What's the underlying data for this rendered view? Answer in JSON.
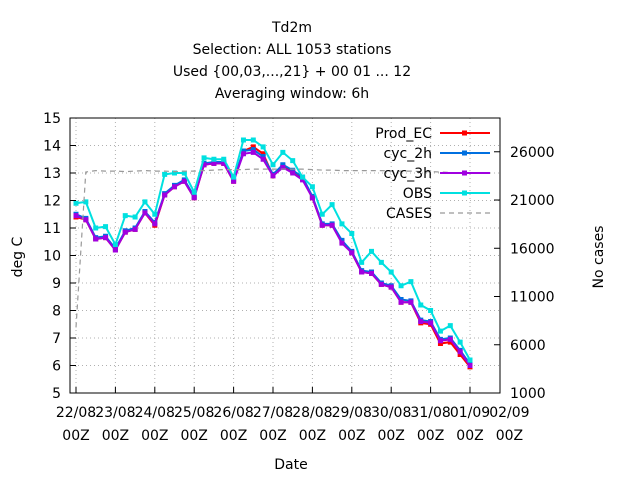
{
  "chart_data": {
    "type": "line",
    "title_lines": [
      "Td2m",
      "Selection: ALL    1053 stations",
      "Used {00,03,...,21} + 00 01 ... 12",
      "Averaging window:  6h"
    ],
    "xlabel": "Date",
    "ylabel": "deg C",
    "y2label": "No cases",
    "ylim": [
      5,
      15
    ],
    "yticks": [
      "5",
      "6",
      "7",
      "8",
      "9",
      "10",
      "11",
      "12",
      "13",
      "14",
      "15"
    ],
    "y2lim": [
      1000,
      29500
    ],
    "y2ticks": [
      "1000",
      "6000",
      "11000",
      "16000",
      "21000",
      "26000"
    ],
    "xlim": [
      0,
      240
    ],
    "xticks": [
      {
        "x": 0,
        "date": "22/08",
        "hour": "00Z"
      },
      {
        "x": 24,
        "date": "23/08",
        "hour": "00Z"
      },
      {
        "x": 48,
        "date": "24/08",
        "hour": "00Z"
      },
      {
        "x": 72,
        "date": "25/08",
        "hour": "00Z"
      },
      {
        "x": 96,
        "date": "26/08",
        "hour": "00Z"
      },
      {
        "x": 120,
        "date": "27/08",
        "hour": "00Z"
      },
      {
        "x": 144,
        "date": "28/08",
        "hour": "00Z"
      },
      {
        "x": 168,
        "date": "29/08",
        "hour": "00Z"
      },
      {
        "x": 192,
        "date": "30/08",
        "hour": "00Z"
      },
      {
        "x": 216,
        "date": "31/08",
        "hour": "00Z"
      },
      {
        "x": 240,
        "date": "01/09",
        "hour": "00Z"
      },
      {
        "x": 264,
        "date": "02/09",
        "hour": "00Z"
      }
    ],
    "x": [
      0,
      6,
      12,
      18,
      24,
      30,
      36,
      42,
      48,
      54,
      60,
      66,
      72,
      78,
      84,
      90,
      96,
      102,
      108,
      114,
      120,
      126,
      132,
      138,
      144,
      150,
      156,
      162,
      168,
      174,
      180,
      186,
      192,
      198,
      204,
      210,
      216,
      222,
      228,
      234,
      240
    ],
    "legend_position": "top-right",
    "grid": true,
    "series": [
      {
        "name": "Prod_EC",
        "color": "#ff0000",
        "marker": "square",
        "axis": "y",
        "values": [
          11.4,
          11.3,
          10.6,
          10.65,
          10.2,
          10.85,
          10.95,
          11.55,
          11.1,
          12.2,
          12.5,
          12.7,
          12.1,
          13.3,
          13.35,
          13.35,
          12.7,
          13.8,
          13.95,
          13.7,
          12.9,
          13.25,
          13.05,
          12.8,
          12.1,
          11.1,
          11.1,
          10.5,
          10.1,
          9.4,
          9.35,
          8.95,
          8.85,
          8.3,
          8.3,
          7.55,
          7.5,
          6.8,
          6.85,
          6.4,
          5.95
        ]
      },
      {
        "name": "cyc_2h",
        "color": "#0070e0",
        "marker": "square",
        "axis": "y",
        "values": [
          11.5,
          11.35,
          10.65,
          10.7,
          10.25,
          10.9,
          11.0,
          11.6,
          11.2,
          12.25,
          12.55,
          12.75,
          12.15,
          13.35,
          13.4,
          13.4,
          12.75,
          13.8,
          13.85,
          13.6,
          12.95,
          13.3,
          13.1,
          12.85,
          12.15,
          11.15,
          11.15,
          10.55,
          10.15,
          9.45,
          9.4,
          9.0,
          8.9,
          8.4,
          8.35,
          7.65,
          7.6,
          6.95,
          7.0,
          6.55,
          6.05
        ]
      },
      {
        "name": "cyc_3h",
        "color": "#a000e0",
        "marker": "square",
        "axis": "y",
        "values": [
          11.45,
          11.3,
          10.6,
          10.65,
          10.2,
          10.85,
          10.95,
          11.55,
          11.15,
          12.2,
          12.5,
          12.7,
          12.1,
          13.3,
          13.35,
          13.35,
          12.7,
          13.7,
          13.75,
          13.5,
          12.9,
          13.2,
          13.0,
          12.75,
          12.1,
          11.1,
          11.1,
          10.45,
          10.1,
          9.4,
          9.35,
          8.95,
          8.85,
          8.3,
          8.3,
          7.6,
          7.55,
          6.9,
          6.95,
          6.5,
          6.0
        ]
      },
      {
        "name": "OBS",
        "color": "#00e0e0",
        "marker": "square",
        "axis": "y",
        "values": [
          11.9,
          11.95,
          11.0,
          11.05,
          10.4,
          11.45,
          11.4,
          11.95,
          11.5,
          12.95,
          13.0,
          13.0,
          12.3,
          13.55,
          13.5,
          13.5,
          12.85,
          14.2,
          14.2,
          13.95,
          13.3,
          13.75,
          13.45,
          12.85,
          12.5,
          11.5,
          11.85,
          11.15,
          10.8,
          9.75,
          10.15,
          9.75,
          9.4,
          8.9,
          9.05,
          8.2,
          8.0,
          7.25,
          7.45,
          6.85,
          6.2
        ]
      },
      {
        "name": "CASES",
        "color": "#999999",
        "marker": "none",
        "dashed": true,
        "axis": "y2",
        "values": [
          7800,
          23900,
          24050,
          24000,
          24000,
          23950,
          24000,
          24050,
          24000,
          24000,
          23950,
          24000,
          24000,
          24050,
          24100,
          24150,
          24150,
          24150,
          24200,
          24200,
          24200,
          24200,
          24200,
          24200,
          24150,
          24100,
          24100,
          24050,
          24050,
          24050,
          24050,
          24050,
          24000,
          24000,
          24000,
          23950,
          23950,
          23900,
          23850,
          23800,
          23750
        ]
      }
    ]
  }
}
